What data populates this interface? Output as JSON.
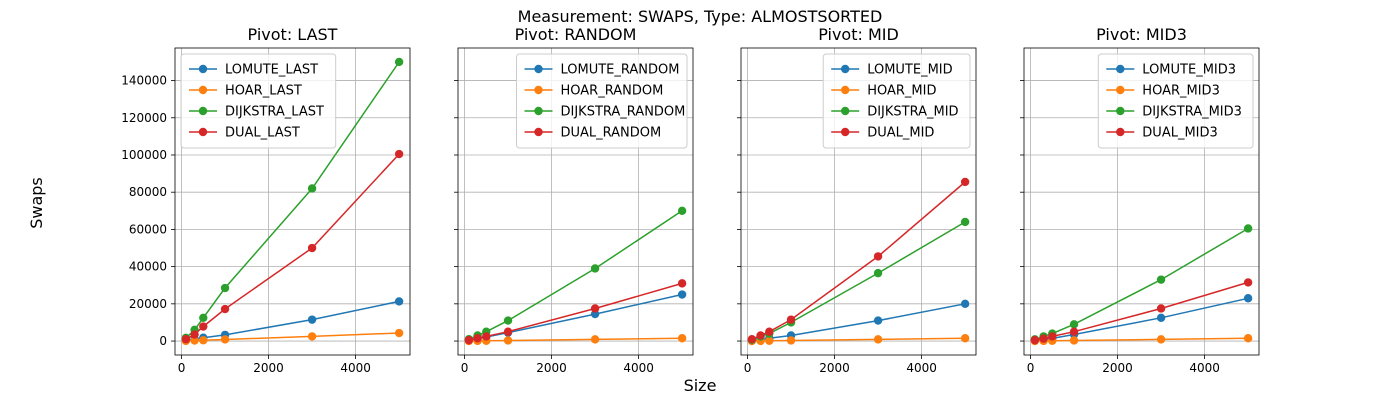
{
  "suptitle": "Measurement: SWAPS, Type: ALMOSTSORTED",
  "xlabel": "Size",
  "ylabel": "Swaps",
  "colors": {
    "series1": "#1f77b4",
    "series2": "#ff7f0e",
    "series3": "#2ca02c",
    "series4": "#d62728",
    "grid": "#b0b0b0"
  },
  "chart_data": [
    {
      "type": "line",
      "title": "Pivot: LAST",
      "x": [
        100,
        300,
        500,
        1000,
        3000,
        5000
      ],
      "xlim": [
        -150,
        5250
      ],
      "ylim": [
        -7500,
        157500
      ],
      "xticks": [
        0,
        2000,
        4000
      ],
      "yticks": [
        0,
        20000,
        40000,
        60000,
        80000,
        100000,
        120000,
        140000
      ],
      "grid": true,
      "legend": "top-left",
      "series": [
        {
          "name": "LOMUTE_LAST",
          "values": [
            350,
            1050,
            1800,
            3300,
            11500,
            21300
          ]
        },
        {
          "name": "HOAR_LAST",
          "values": [
            80,
            250,
            420,
            850,
            2500,
            4300
          ]
        },
        {
          "name": "DIJKSTRA_LAST",
          "values": [
            1700,
            6000,
            12500,
            28500,
            82000,
            150000
          ]
        },
        {
          "name": "DUAL_LAST",
          "values": [
            1000,
            3500,
            7800,
            17200,
            50000,
            100500
          ]
        }
      ]
    },
    {
      "type": "line",
      "title": "Pivot: RANDOM",
      "x": [
        100,
        300,
        500,
        1000,
        3000,
        5000
      ],
      "xlim": [
        -150,
        5250
      ],
      "ylim": [
        -7500,
        157500
      ],
      "xticks": [
        0,
        2000,
        4000
      ],
      "yticks": [
        0,
        20000,
        40000,
        60000,
        80000,
        100000,
        120000,
        140000
      ],
      "grid": true,
      "legend": "top-right",
      "series": [
        {
          "name": "LOMUTE_RANDOM",
          "values": [
            400,
            1200,
            2200,
            4500,
            14500,
            25000
          ]
        },
        {
          "name": "HOAR_RANDOM",
          "values": [
            30,
            90,
            150,
            300,
            900,
            1500
          ]
        },
        {
          "name": "DIJKSTRA_RANDOM",
          "values": [
            1000,
            3000,
            5000,
            11000,
            39000,
            70000
          ]
        },
        {
          "name": "DUAL_RANDOM",
          "values": [
            500,
            1500,
            2500,
            5000,
            17500,
            31000
          ]
        }
      ]
    },
    {
      "type": "line",
      "title": "Pivot: MID",
      "x": [
        100,
        300,
        500,
        1000,
        3000,
        5000
      ],
      "xlim": [
        -150,
        5250
      ],
      "ylim": [
        -7500,
        157500
      ],
      "xticks": [
        0,
        2000,
        4000
      ],
      "yticks": [
        0,
        20000,
        40000,
        60000,
        80000,
        100000,
        120000,
        140000
      ],
      "grid": true,
      "legend": "top-right",
      "series": [
        {
          "name": "LOMUTE_MID",
          "values": [
            300,
            800,
            1500,
            3000,
            11000,
            20000
          ]
        },
        {
          "name": "HOAR_MID",
          "values": [
            30,
            90,
            150,
            300,
            900,
            1500
          ]
        },
        {
          "name": "DIJKSTRA_MID",
          "values": [
            700,
            2500,
            4000,
            10000,
            36500,
            64000
          ]
        },
        {
          "name": "DUAL_MID",
          "values": [
            1000,
            3000,
            5000,
            11500,
            45500,
            85500
          ]
        }
      ]
    },
    {
      "type": "line",
      "title": "Pivot: MID3",
      "x": [
        100,
        300,
        500,
        1000,
        3000,
        5000
      ],
      "xlim": [
        -150,
        5250
      ],
      "ylim": [
        -7500,
        157500
      ],
      "xticks": [
        0,
        2000,
        4000
      ],
      "yticks": [
        0,
        20000,
        40000,
        60000,
        80000,
        100000,
        120000,
        140000
      ],
      "grid": true,
      "legend": "top-right",
      "series": [
        {
          "name": "LOMUTE_MID3",
          "values": [
            300,
            800,
            1400,
            3500,
            12500,
            23000
          ]
        },
        {
          "name": "HOAR_MID3",
          "values": [
            30,
            90,
            150,
            300,
            900,
            1500
          ]
        },
        {
          "name": "DIJKSTRA_MID3",
          "values": [
            900,
            2500,
            4000,
            9000,
            33000,
            60500
          ]
        },
        {
          "name": "DUAL_MID3",
          "values": [
            500,
            1300,
            2500,
            5000,
            17500,
            31500
          ]
        }
      ]
    }
  ]
}
